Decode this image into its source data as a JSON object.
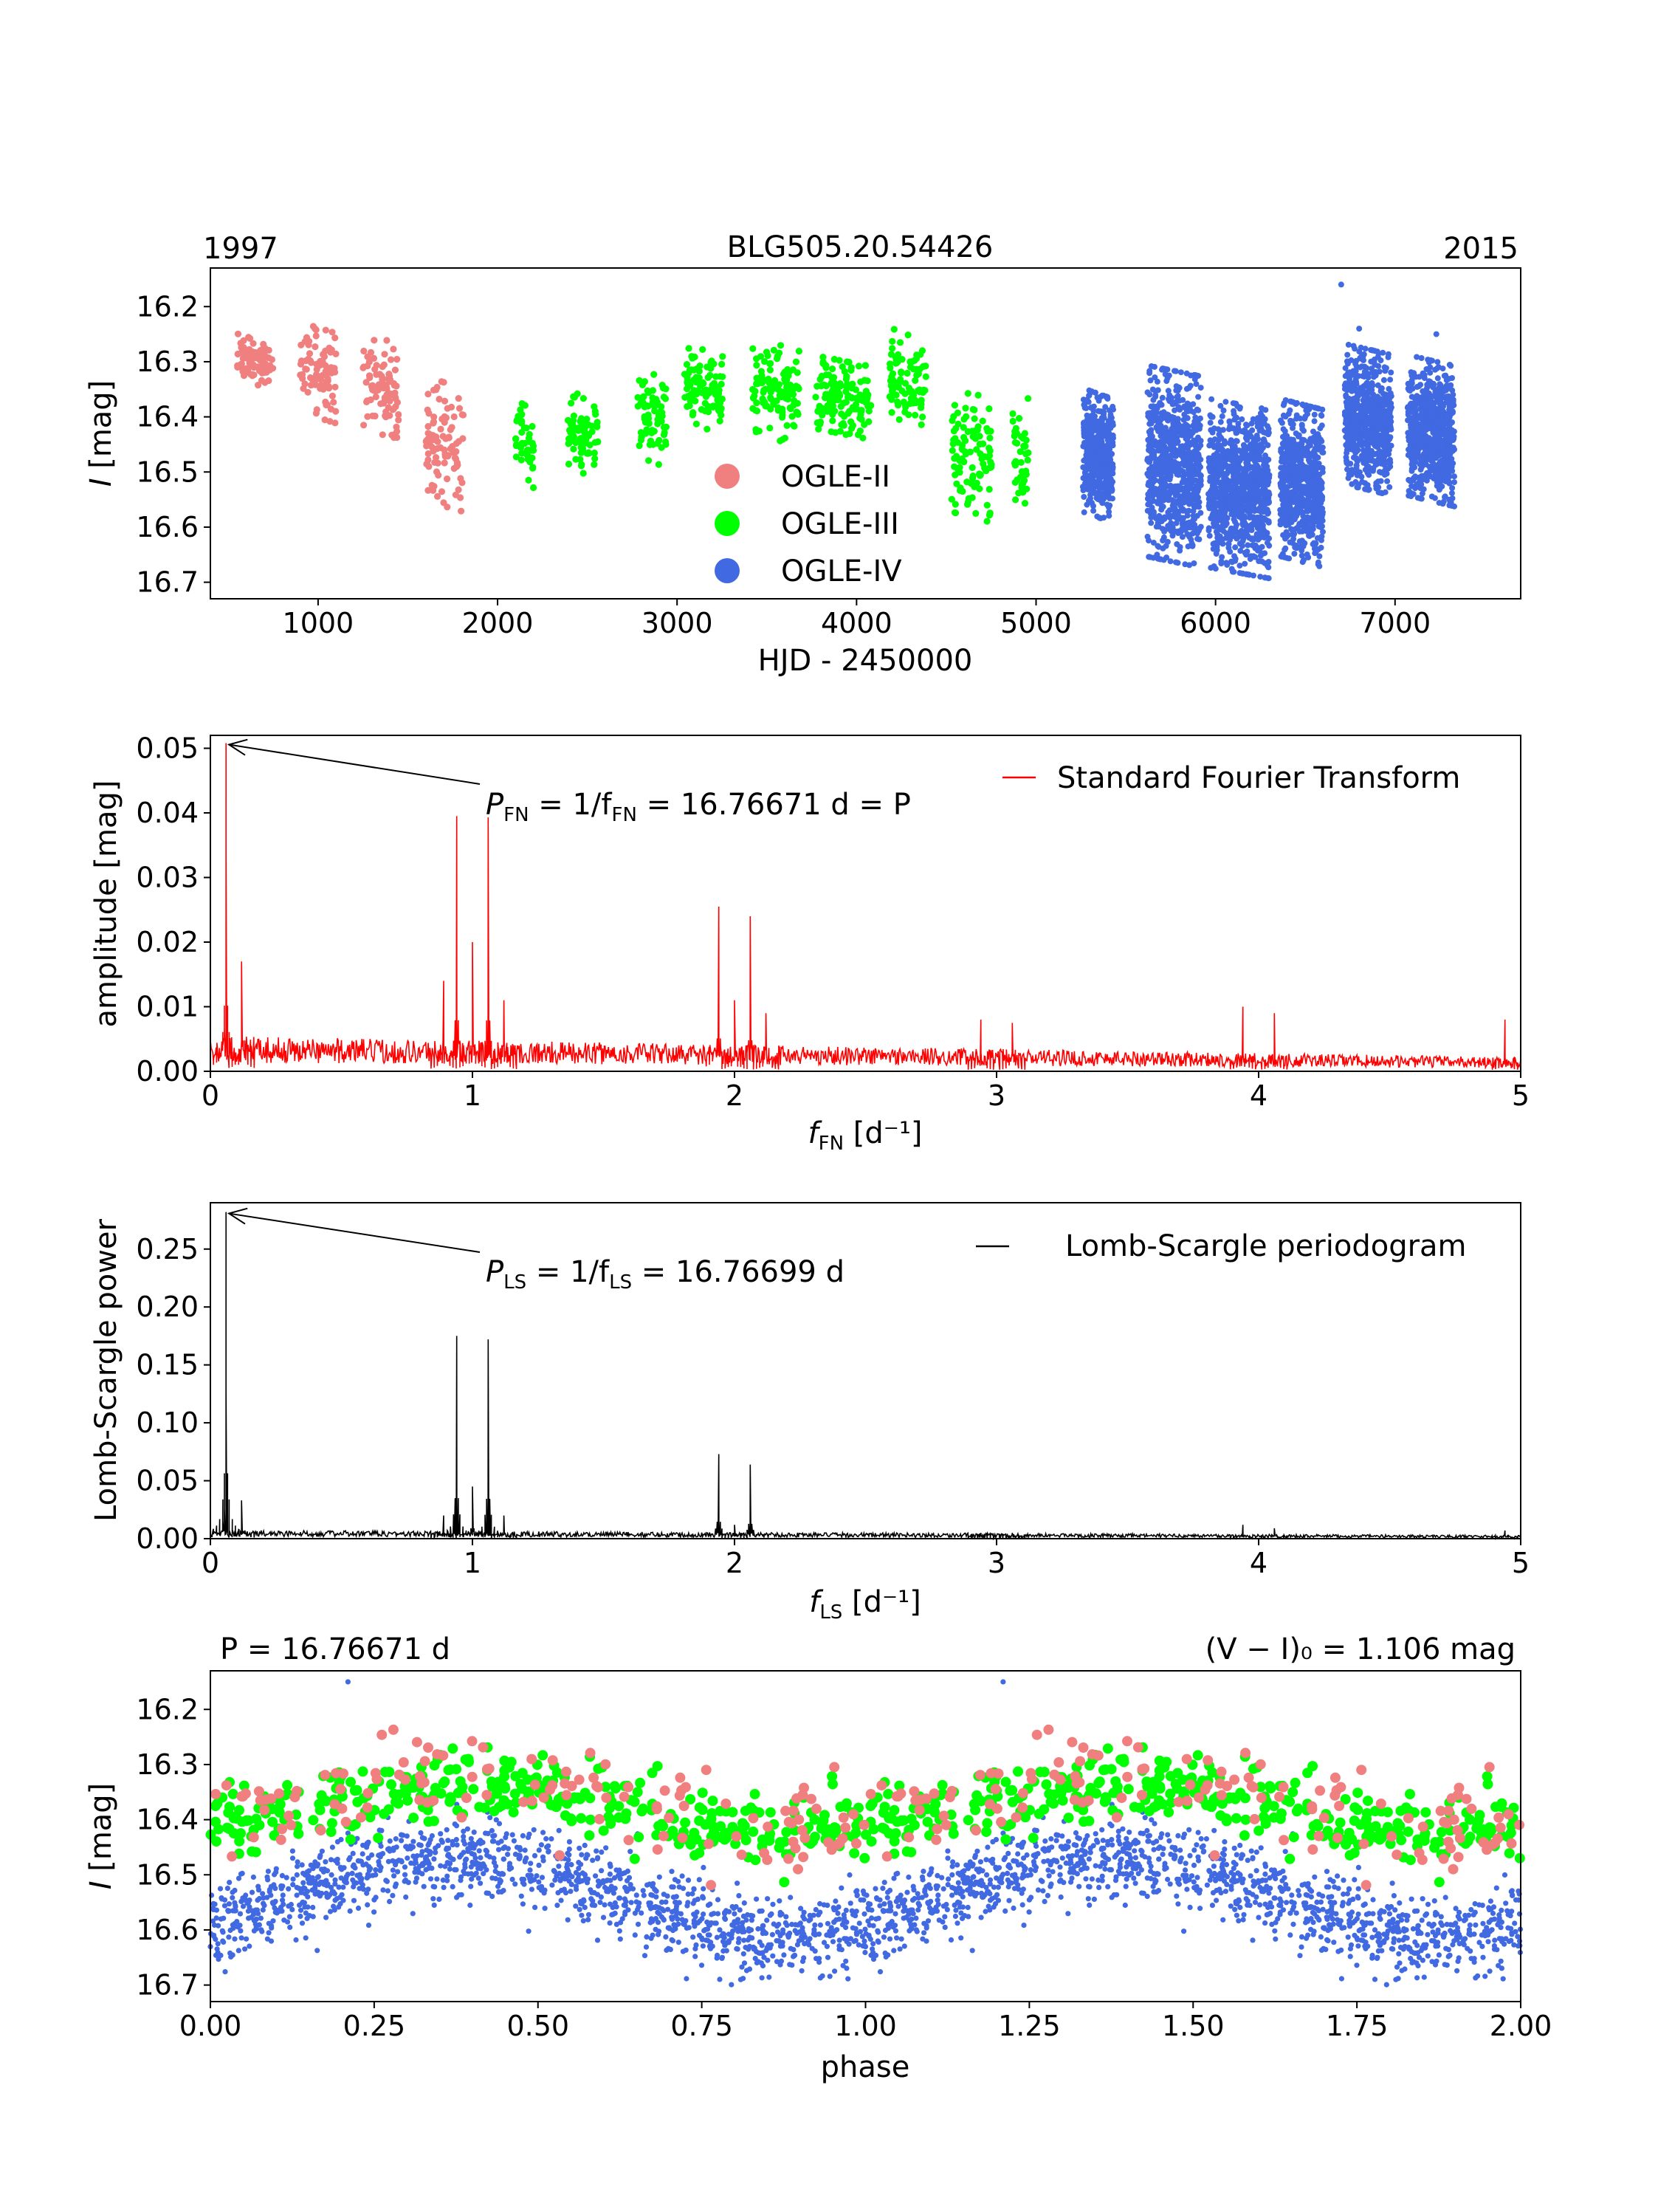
{
  "figure_title": "BLG505.20.54426",
  "chart_data": [
    {
      "id": "light_curve",
      "type": "scatter",
      "title": "BLG505.20.54426",
      "top_left_label": "1997",
      "top_right_label": "2015",
      "xlabel": "HJD - 2450000",
      "ylabel_italic": "I",
      "ylabel_rest": " [mag]",
      "xlim": [
        400,
        7700
      ],
      "ylim": [
        16.73,
        16.13
      ],
      "inverted_y": true,
      "xticks": [
        1000,
        2000,
        3000,
        4000,
        5000,
        6000,
        7000
      ],
      "xtick_labels": [
        "1000",
        "2000",
        "3000",
        "4000",
        "5000",
        "6000",
        "7000"
      ],
      "yticks": [
        16.2,
        16.3,
        16.4,
        16.5,
        16.6,
        16.7
      ],
      "ytick_labels": [
        "16.2",
        "16.3",
        "16.4",
        "16.5",
        "16.6",
        "16.7"
      ],
      "legend_position": "center",
      "series": [
        {
          "name": "OGLE-II",
          "color": "#f08080",
          "seasons": [
            {
              "t": [
                550,
                750
              ],
              "m": [
                16.26,
                16.34
              ]
            },
            {
              "t": [
                900,
                1100
              ],
              "m": [
                16.24,
                16.4
              ]
            },
            {
              "t": [
                1250,
                1450
              ],
              "m": [
                16.26,
                16.46
              ]
            },
            {
              "t": [
                1600,
                1810
              ],
              "m": [
                16.34,
                16.56
              ]
            }
          ]
        },
        {
          "name": "OGLE-III",
          "color": "#00ff00",
          "seasons": [
            {
              "t": [
                2100,
                2200
              ],
              "m": [
                16.38,
                16.52
              ]
            },
            {
              "t": [
                2380,
                2560
              ],
              "m": [
                16.36,
                16.5
              ]
            },
            {
              "t": [
                2780,
                2940
              ],
              "m": [
                16.32,
                16.48
              ]
            },
            {
              "t": [
                3040,
                3260
              ],
              "m": [
                16.28,
                16.42
              ]
            },
            {
              "t": [
                3420,
                3680
              ],
              "m": [
                16.27,
                16.44
              ]
            },
            {
              "t": [
                3770,
                4080
              ],
              "m": [
                16.3,
                16.43
              ]
            },
            {
              "t": [
                4180,
                4390
              ],
              "m": [
                16.25,
                16.42
              ]
            },
            {
              "t": [
                4530,
                4760
              ],
              "m": [
                16.36,
                16.58
              ]
            },
            {
              "t": [
                4870,
                4960
              ],
              "m": [
                16.36,
                16.58
              ]
            }
          ]
        },
        {
          "name": "OGLE-IV",
          "color": "#4169e1",
          "seasons": [
            {
              "t": [
                5260,
                5430
              ],
              "m": [
                16.36,
                16.58
              ]
            },
            {
              "t": [
                5620,
                5920
              ],
              "m": [
                16.32,
                16.66
              ]
            },
            {
              "t": [
                5960,
                6300
              ],
              "m": [
                16.38,
                16.68
              ]
            },
            {
              "t": [
                6360,
                6600
              ],
              "m": [
                16.38,
                16.66
              ]
            },
            {
              "t": [
                6720,
                6980
              ],
              "m": [
                16.28,
                16.53
              ]
            },
            {
              "t": [
                7070,
                7330
              ],
              "m": [
                16.3,
                16.55
              ]
            }
          ]
        }
      ]
    },
    {
      "id": "fourier",
      "type": "line",
      "series_name": "Standard Fourier Transform",
      "color": "#ff0000",
      "xlabel": "f",
      "xlabel_sub": "FN",
      "xlabel_unit": " [d⁻¹]",
      "ylabel": "amplitude [mag]",
      "xlim": [
        0,
        5
      ],
      "ylim": [
        0,
        0.052
      ],
      "xticks": [
        0,
        1,
        2,
        3,
        4,
        5
      ],
      "xtick_labels": [
        "0",
        "1",
        "2",
        "3",
        "4",
        "5"
      ],
      "yticks": [
        0,
        0.01,
        0.02,
        0.03,
        0.04,
        0.05
      ],
      "ytick_labels": [
        "0.00",
        "0.01",
        "0.02",
        "0.03",
        "0.04",
        "0.05"
      ],
      "legend_position": "top-right",
      "noise_level": 0.003,
      "peaks": [
        {
          "f": 0.0596,
          "a": 0.0508
        },
        {
          "f": 0.0596,
          "a": 0.0335
        },
        {
          "f": 0.119,
          "a": 0.017
        },
        {
          "f": 0.89,
          "a": 0.014
        },
        {
          "f": 0.94,
          "a": 0.0395
        },
        {
          "f": 1.0,
          "a": 0.02
        },
        {
          "f": 1.06,
          "a": 0.0393
        },
        {
          "f": 1.12,
          "a": 0.011
        },
        {
          "f": 1.94,
          "a": 0.0255
        },
        {
          "f": 2.0,
          "a": 0.011
        },
        {
          "f": 2.06,
          "a": 0.024
        },
        {
          "f": 2.12,
          "a": 0.009
        },
        {
          "f": 2.94,
          "a": 0.008
        },
        {
          "f": 3.06,
          "a": 0.0075
        },
        {
          "f": 3.94,
          "a": 0.01
        },
        {
          "f": 4.06,
          "a": 0.009
        },
        {
          "f": 4.94,
          "a": 0.008
        }
      ],
      "annotation": {
        "target_f": 0.0596,
        "target_a": 0.0508,
        "text_pre": "P",
        "text_sub": "FN",
        "text_mid": " = 1/f",
        "text_mid_sub": "FN",
        "text_post": " = 16.76671 d = P"
      }
    },
    {
      "id": "lomb_scargle",
      "type": "line",
      "series_name": "Lomb-Scargle periodogram",
      "color": "#000000",
      "xlabel": "f",
      "xlabel_sub": "LS",
      "xlabel_unit": " [d⁻¹]",
      "ylabel": "Lomb-Scargle power",
      "xlim": [
        0,
        5
      ],
      "ylim": [
        0,
        0.29
      ],
      "xticks": [
        0,
        1,
        2,
        3,
        4,
        5
      ],
      "xtick_labels": [
        "0",
        "1",
        "2",
        "3",
        "4",
        "5"
      ],
      "yticks": [
        0,
        0.05,
        0.1,
        0.15,
        0.2,
        0.25
      ],
      "ytick_labels": [
        "0.00",
        "0.05",
        "0.10",
        "0.15",
        "0.20",
        "0.25"
      ],
      "legend_position": "top-right",
      "noise_level": 0.004,
      "peaks": [
        {
          "f": 0.0596,
          "a": 0.282
        },
        {
          "f": 0.0596,
          "a": 0.128
        },
        {
          "f": 0.119,
          "a": 0.033
        },
        {
          "f": 0.89,
          "a": 0.02
        },
        {
          "f": 0.94,
          "a": 0.175
        },
        {
          "f": 1.0,
          "a": 0.045
        },
        {
          "f": 1.06,
          "a": 0.172
        },
        {
          "f": 1.12,
          "a": 0.02
        },
        {
          "f": 1.94,
          "a": 0.073
        },
        {
          "f": 2.0,
          "a": 0.012
        },
        {
          "f": 2.06,
          "a": 0.064
        },
        {
          "f": 2.94,
          "a": 0.005
        },
        {
          "f": 3.06,
          "a": 0.005
        },
        {
          "f": 3.94,
          "a": 0.012
        },
        {
          "f": 4.06,
          "a": 0.009
        },
        {
          "f": 4.94,
          "a": 0.007
        }
      ],
      "annotation": {
        "target_f": 0.0596,
        "target_a": 0.282,
        "text_pre": "P",
        "text_sub": "LS",
        "text_mid": " = 1/f",
        "text_mid_sub": "LS",
        "text_post": " = 16.76699 d"
      }
    },
    {
      "id": "phased",
      "type": "scatter",
      "period_label": "P = 16.76671 d",
      "color_label": "(V − I)₀ = 1.106 mag",
      "xlabel": "phase",
      "ylabel_italic": "I",
      "ylabel_rest": " [mag]",
      "xlim": [
        0,
        2
      ],
      "ylim": [
        16.73,
        16.13
      ],
      "inverted_y": true,
      "xticks": [
        0,
        0.25,
        0.5,
        0.75,
        1.0,
        1.25,
        1.5,
        1.75,
        2.0
      ],
      "xtick_labels": [
        "0.00",
        "0.25",
        "0.50",
        "0.75",
        "1.00",
        "1.25",
        "1.50",
        "1.75",
        "2.00"
      ],
      "yticks": [
        16.2,
        16.3,
        16.4,
        16.5,
        16.6,
        16.7
      ],
      "ytick_labels": [
        "16.2",
        "16.3",
        "16.4",
        "16.5",
        "16.6",
        "16.7"
      ],
      "series": [
        {
          "name": "OGLE-IV",
          "color": "#4169e1",
          "mean": 16.54,
          "amp": 0.07,
          "max_phase": 0.38,
          "scatter": 0.05,
          "n": 1300,
          "size": "small"
        },
        {
          "name": "OGLE-III",
          "color": "#00ff00",
          "mean": 16.38,
          "amp": 0.04,
          "max_phase": 0.38,
          "scatter": 0.045,
          "n": 380,
          "size": "large"
        },
        {
          "name": "OGLE-II",
          "color": "#f08080",
          "mean": 16.37,
          "amp": 0.04,
          "max_phase": 0.38,
          "scatter": 0.06,
          "n": 130,
          "size": "large"
        }
      ]
    }
  ]
}
